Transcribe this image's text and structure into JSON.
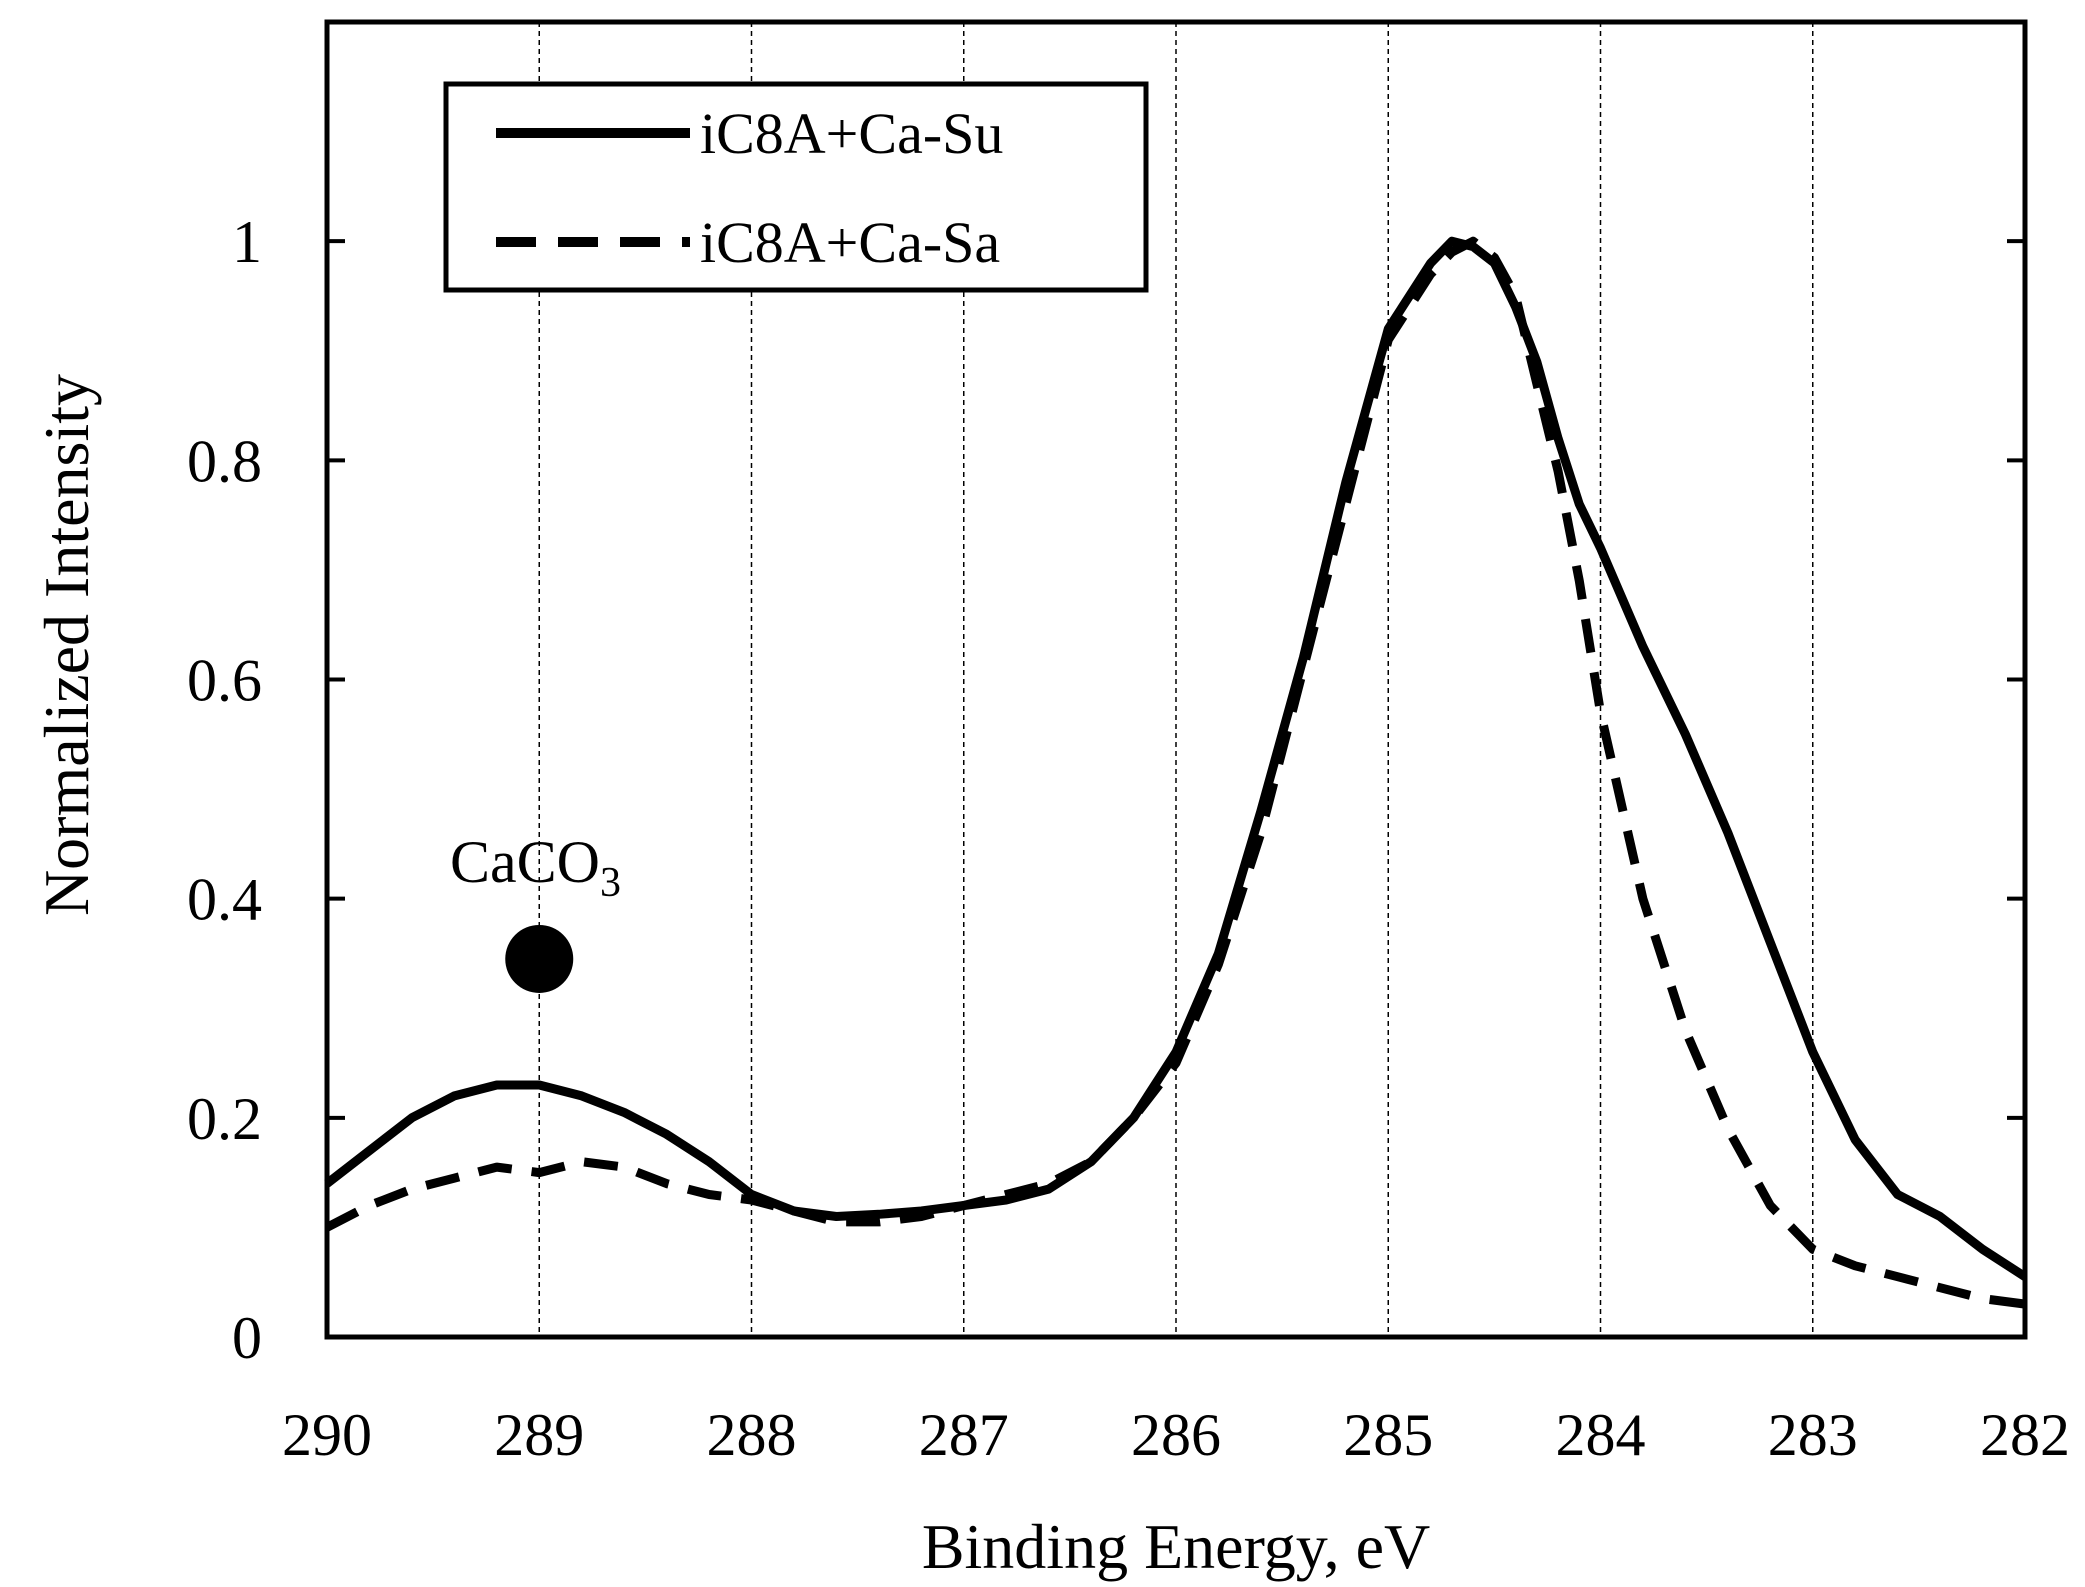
{
  "chart_data": {
    "type": "line",
    "title": "",
    "xlabel": "Binding Energy, eV",
    "ylabel": "Normalized Intensity",
    "xlim": [
      290,
      282
    ],
    "ylim": [
      0,
      1.2
    ],
    "x_reversed": true,
    "xticks": [
      290,
      289,
      288,
      287,
      286,
      285,
      284,
      283,
      282
    ],
    "yticks": [
      0,
      0.2,
      0.4,
      0.6,
      0.8,
      1
    ],
    "xtick_labels": [
      "290",
      "289",
      "288",
      "287",
      "286",
      "285",
      "284",
      "283",
      "282"
    ],
    "ytick_labels": [
      "0",
      "0.2",
      "0.4",
      "0.6",
      "0.8",
      "1"
    ],
    "grid": "vertical dashed at x ticks",
    "legend_position": "top-left",
    "series": [
      {
        "name": "iC8A+Ca-Su",
        "style": "solid",
        "x": [
          290,
          289.8,
          289.6,
          289.4,
          289.2,
          289.0,
          288.8,
          288.6,
          288.4,
          288.2,
          288.0,
          287.8,
          287.6,
          287.4,
          287.2,
          287.0,
          286.8,
          286.6,
          286.4,
          286.2,
          286.0,
          285.8,
          285.6,
          285.4,
          285.2,
          285.0,
          284.8,
          284.7,
          284.6,
          284.5,
          284.4,
          284.3,
          284.2,
          284.1,
          284.0,
          283.8,
          283.6,
          283.4,
          283.2,
          283.0,
          282.8,
          282.6,
          282.4,
          282.2,
          282.0
        ],
        "y": [
          0.14,
          0.17,
          0.2,
          0.22,
          0.23,
          0.23,
          0.22,
          0.205,
          0.185,
          0.16,
          0.13,
          0.115,
          0.11,
          0.112,
          0.115,
          0.12,
          0.125,
          0.135,
          0.16,
          0.2,
          0.26,
          0.35,
          0.48,
          0.62,
          0.78,
          0.92,
          0.98,
          1.0,
          0.995,
          0.98,
          0.94,
          0.89,
          0.82,
          0.76,
          0.72,
          0.63,
          0.55,
          0.46,
          0.36,
          0.26,
          0.18,
          0.13,
          0.11,
          0.08,
          0.055
        ]
      },
      {
        "name": "iC8A+Ca-Sa",
        "style": "dashed",
        "x": [
          290,
          289.8,
          289.6,
          289.4,
          289.2,
          289.0,
          288.8,
          288.6,
          288.4,
          288.2,
          288.0,
          287.8,
          287.6,
          287.4,
          287.2,
          287.0,
          286.8,
          286.6,
          286.4,
          286.2,
          286.0,
          285.8,
          285.6,
          285.4,
          285.2,
          285.0,
          284.8,
          284.7,
          284.6,
          284.5,
          284.4,
          284.3,
          284.2,
          284.1,
          284.0,
          283.8,
          283.6,
          283.4,
          283.2,
          283.0,
          282.8,
          282.6,
          282.4,
          282.2,
          282.0
        ],
        "y": [
          0.1,
          0.12,
          0.135,
          0.145,
          0.155,
          0.15,
          0.16,
          0.155,
          0.14,
          0.13,
          0.125,
          0.115,
          0.105,
          0.105,
          0.11,
          0.12,
          0.13,
          0.14,
          0.16,
          0.2,
          0.25,
          0.34,
          0.46,
          0.61,
          0.76,
          0.91,
          0.97,
          0.99,
          1.0,
          0.985,
          0.95,
          0.87,
          0.79,
          0.69,
          0.57,
          0.4,
          0.28,
          0.19,
          0.12,
          0.08,
          0.065,
          0.055,
          0.045,
          0.035,
          0.03
        ]
      }
    ],
    "annotations": [
      {
        "text_main": "CaCO",
        "text_sub": "3",
        "marker": "filled-circle",
        "x": 289.0,
        "y": 0.345
      }
    ]
  }
}
